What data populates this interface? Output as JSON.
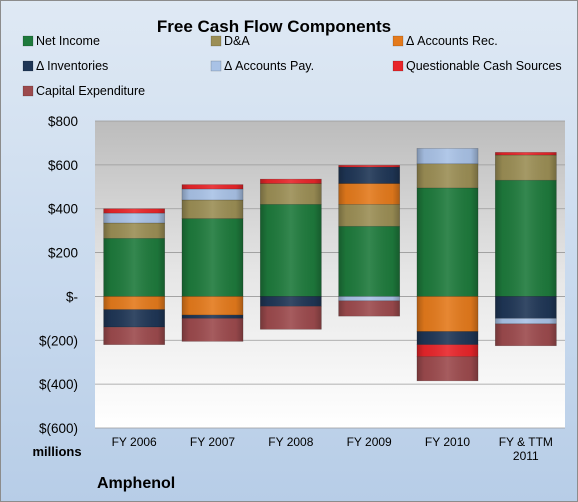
{
  "chart_data": {
    "type": "bar",
    "stacked": true,
    "title": "Free Cash Flow Components",
    "categories": [
      "FY 2006",
      "FY 2007",
      "FY 2008",
      "FY 2009",
      "FY 2010",
      "FY & TTM 2011"
    ],
    "ylim": [
      -600,
      800
    ],
    "yticks": [
      800,
      600,
      400,
      200,
      0,
      -200,
      -400,
      -600
    ],
    "ytick_labels": [
      "$800",
      "$600",
      "$400",
      "$200",
      "$-",
      "$(200)",
      "$(400)",
      "$(600)"
    ],
    "units_label": "millions",
    "grid": true,
    "legend_position": "top",
    "series": [
      {
        "name": "Net Income",
        "color": "#1e7a3c",
        "values": [
          265,
          355,
          420,
          320,
          495,
          530
        ]
      },
      {
        "name": "D&A",
        "color": "#9b8e55",
        "values": [
          70,
          85,
          95,
          100,
          110,
          115
        ]
      },
      {
        "name": "Δ Accounts Rec.",
        "color": "#e47a1c",
        "values": [
          -60,
          -85,
          0,
          95,
          -160,
          0
        ]
      },
      {
        "name": "Δ Inventories",
        "color": "#1f3656",
        "values": [
          -80,
          -15,
          -45,
          75,
          -60,
          -100
        ]
      },
      {
        "name": "Δ Accounts Pay.",
        "color": "#a9c2e6",
        "values": [
          45,
          50,
          0,
          -20,
          70,
          -25
        ]
      },
      {
        "name": "Questionable Cash Sources",
        "color": "#e8252a",
        "values": [
          20,
          20,
          20,
          8,
          -55,
          12
        ]
      },
      {
        "name": "Capital Expenditure",
        "color": "#9c4a4d",
        "values": [
          -80,
          -105,
          -105,
          -70,
          -110,
          -100
        ]
      }
    ]
  },
  "company": "Amphenol"
}
